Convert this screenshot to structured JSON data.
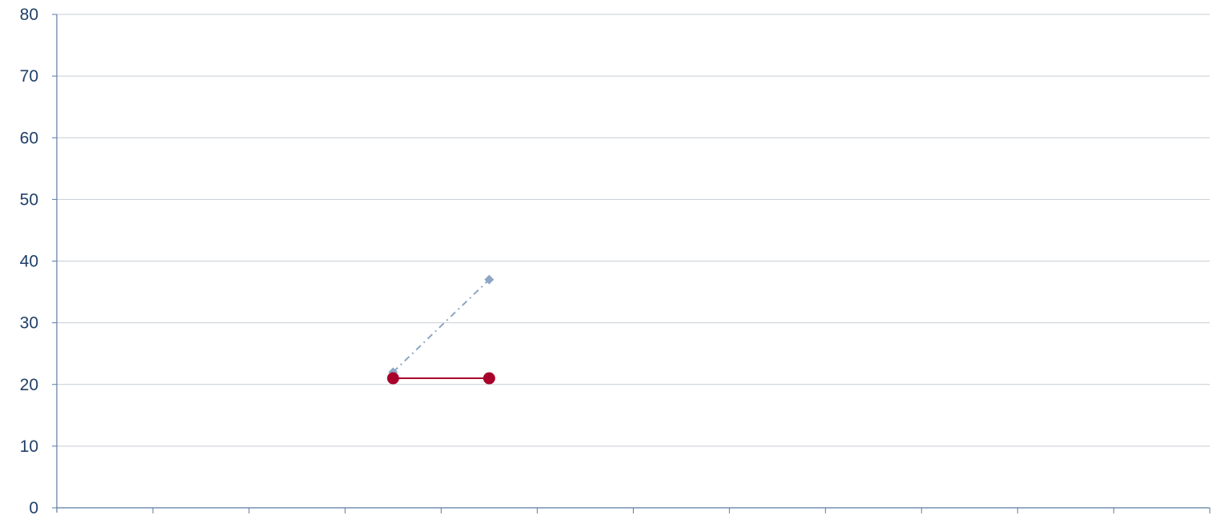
{
  "chart_data": {
    "type": "line",
    "title": "",
    "xlabel": "",
    "ylabel": "",
    "ylim": [
      0,
      80
    ],
    "yticks": [
      "0",
      "10",
      "20",
      "30",
      "40",
      "50",
      "60",
      "70",
      "80"
    ],
    "x_category_count": 12,
    "categories": [
      "",
      "",
      "",
      "",
      "",
      "",
      "",
      "",
      "",
      "",
      "",
      ""
    ],
    "grid": "horizontal",
    "legend": "none",
    "series": [
      {
        "points": [
          {
            "index": 3.5,
            "y": 22
          },
          {
            "index": 4.5,
            "y": 37
          }
        ],
        "color": "#8ea6c4",
        "style": "dash-dot",
        "marker": "diamond"
      },
      {
        "points": [
          {
            "index": 3.5,
            "y": 21
          },
          {
            "index": 4.5,
            "y": 21
          }
        ],
        "color": "#a8002a",
        "style": "solid",
        "marker": "circle"
      }
    ]
  }
}
